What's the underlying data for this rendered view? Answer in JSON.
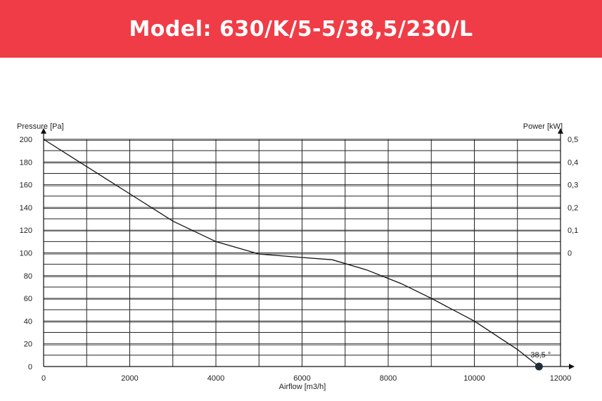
{
  "header": {
    "title": "Model: 630/K/5-5/38,5/230/L",
    "background": "#f03c46"
  },
  "chart_data": {
    "type": "line",
    "title": "",
    "xlabel": "Airflow [m3/h]",
    "ylabel": "Pressure [Pa]",
    "y2label": "Power [kW]",
    "xlim": [
      0,
      12000
    ],
    "ylim": [
      0,
      200
    ],
    "grid": true,
    "x_ticks": [
      "0",
      "2000",
      "4000",
      "6000",
      "8000",
      "10000",
      "12000"
    ],
    "y_ticks": [
      "0",
      "20",
      "40",
      "60",
      "80",
      "100",
      "120",
      "140",
      "160",
      "180",
      "200"
    ],
    "y2_ticks": [
      "0",
      "0,1",
      "0,2",
      "0,3",
      "0,4",
      "0,5"
    ],
    "series": [
      {
        "name": "",
        "x": [
          0,
          1000,
          2000,
          3000,
          4000,
          5000,
          6000,
          6700,
          7500,
          8300,
          9000,
          10000,
          11000,
          11500
        ],
        "y": [
          200,
          176,
          152,
          128,
          110,
          99,
          96,
          94,
          85,
          73,
          60,
          40,
          15,
          0
        ]
      }
    ],
    "annotations": [
      {
        "text": "38,5 °",
        "x": 11500,
        "y": 0
      }
    ],
    "colors": {
      "line": "#111111",
      "grid": "#222222",
      "marker": "#1f2e36"
    }
  }
}
